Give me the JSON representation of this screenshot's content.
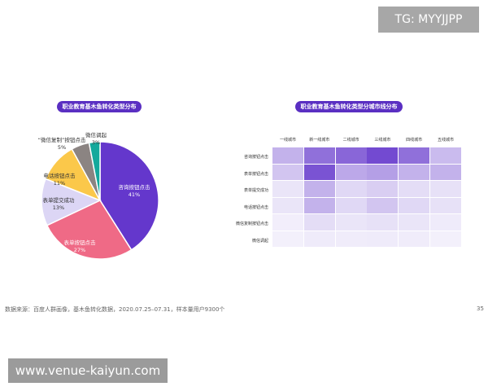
{
  "watermarks": {
    "top": "TG: MYYJJPP",
    "bottom": "www.venue-kaiyun.com"
  },
  "chart_data": [
    {
      "type": "pie",
      "title": "职业教育基木鱼转化类型分布",
      "slices": [
        {
          "label": "咨询按钮点击",
          "value": 41,
          "value_label": "41%",
          "color": "#6437cc"
        },
        {
          "label": "表单按钮点击",
          "value": 27,
          "value_label": "27%",
          "color": "#ef6a86"
        },
        {
          "label": "表单提交成功",
          "value": 13,
          "value_label": "13%",
          "color": "#dcd6f5"
        },
        {
          "label": "电话按钮点击",
          "value": 11,
          "value_label": "11%",
          "color": "#fbc84a"
        },
        {
          "label": "“微信复制”按钮点击",
          "value": 5,
          "value_label": "5%",
          "color": "#8b8482"
        },
        {
          "label": "微信调起",
          "value": 3,
          "value_label": "3%",
          "color": "#14a99c"
        }
      ]
    },
    {
      "type": "heatmap",
      "title": "职业教育基木鱼转化类型分城市线分布",
      "columns": [
        "一线城市",
        "新一线城市",
        "二线城市",
        "三线城市",
        "四线城市",
        "五线城市"
      ],
      "rows": [
        "咨询按钮点击",
        "表单按钮点击",
        "表单提交成功",
        "电话按钮点击",
        "微信复制按钮点击",
        "微信调起"
      ],
      "values": [
        [
          0.35,
          0.7,
          0.75,
          0.9,
          0.7,
          0.3
        ],
        [
          0.25,
          0.85,
          0.4,
          0.45,
          0.35,
          0.35
        ],
        [
          0.08,
          0.35,
          0.15,
          0.2,
          0.12,
          0.1
        ],
        [
          0.08,
          0.35,
          0.15,
          0.25,
          0.15,
          0.1
        ],
        [
          0.03,
          0.12,
          0.08,
          0.1,
          0.08,
          0.05
        ],
        [
          0.02,
          0.05,
          0.04,
          0.05,
          0.04,
          0.02
        ]
      ]
    }
  ],
  "footer": {
    "source": "数据来源：百度人群画像，基木鱼转化数据，2020.07.25–07.31，样本量用户9300个",
    "page": "35"
  }
}
